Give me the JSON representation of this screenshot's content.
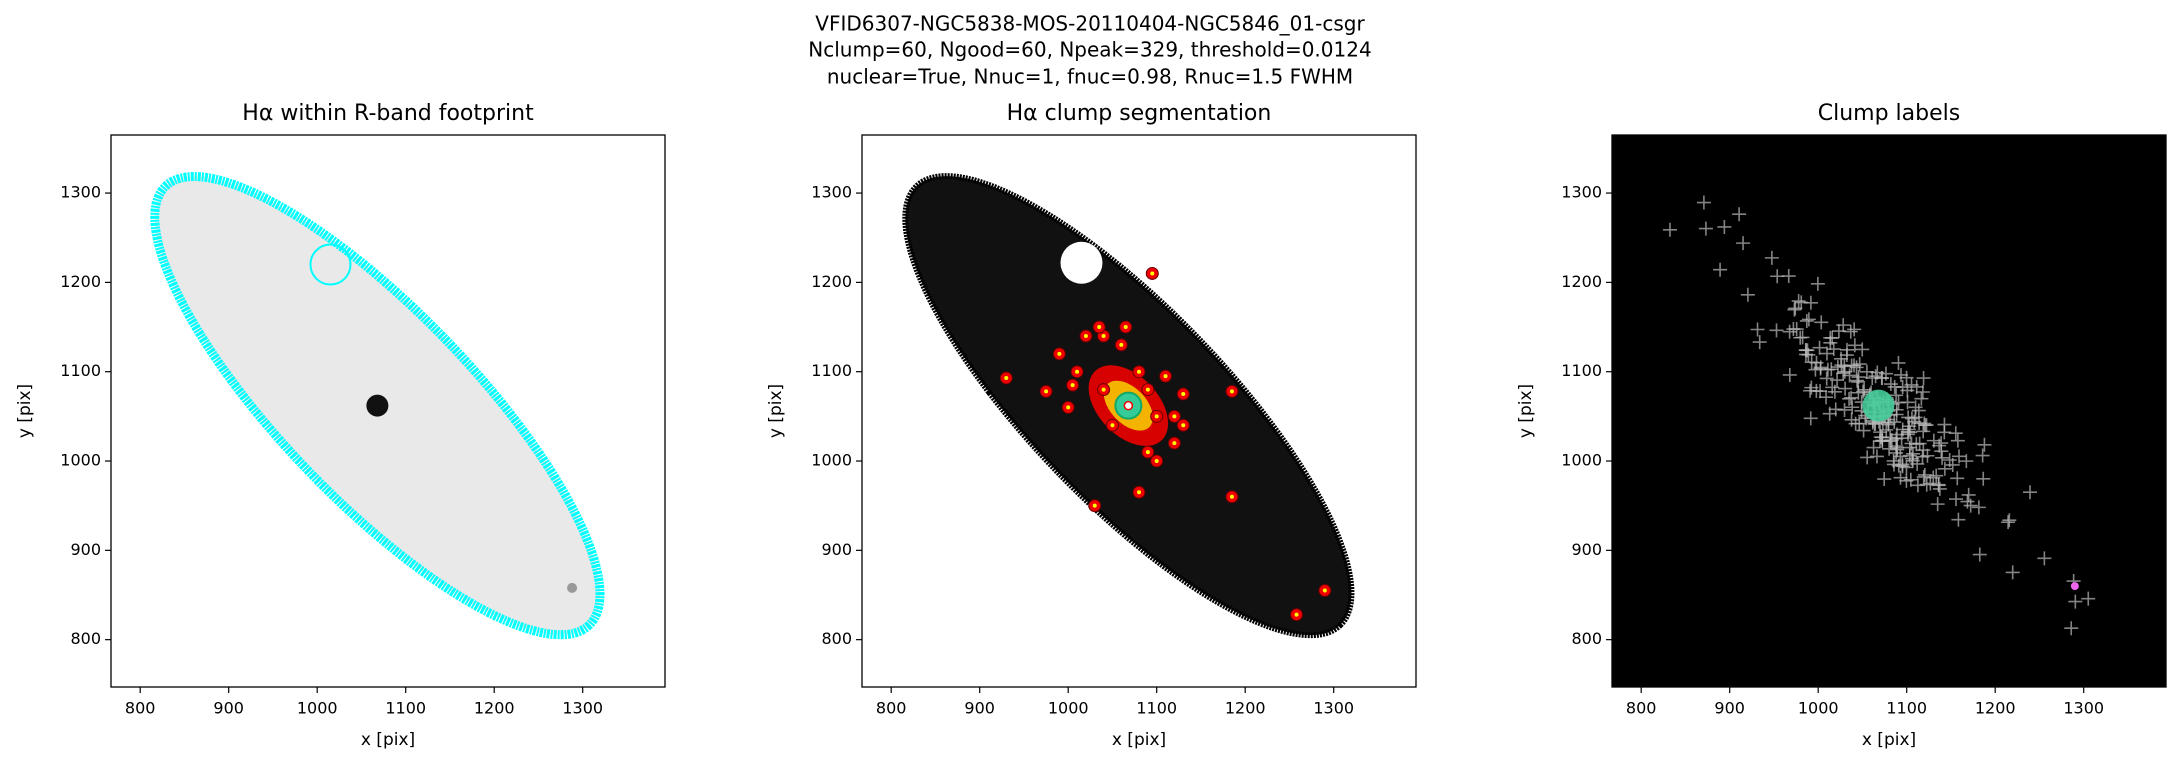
{
  "figure_title": [
    "VFID6307-NGC5838-MOS-20110404-NGC5846_01-csgr",
    "Nclump=60, Ngood=60, Npeak=329, threshold=0.0124",
    "nuclear=True, Nnuc=1, fnuc=0.98, Rnuc=1.5 FWHM"
  ],
  "chart_data": [
    {
      "type": "image",
      "title": "Hα within R-band footprint",
      "xlabel": "x [pix]",
      "ylabel": "y [pix]",
      "xlim": [
        767,
        1393
      ],
      "ylim": [
        747,
        1365
      ],
      "xticks": [
        800,
        900,
        1000,
        1100,
        1200,
        1300
      ],
      "yticks": [
        800,
        900,
        1000,
        1100,
        1200,
        1300
      ]
    },
    {
      "type": "image",
      "title": "Hα clump segmentation",
      "xlabel": "x [pix]",
      "ylabel": "y [pix]",
      "xlim": [
        767,
        1393
      ],
      "ylim": [
        747,
        1365
      ],
      "xticks": [
        800,
        900,
        1000,
        1100,
        1200,
        1300
      ],
      "yticks": [
        800,
        900,
        1000,
        1100,
        1200,
        1300
      ]
    },
    {
      "type": "image",
      "title": "Clump labels",
      "xlabel": "x [pix]",
      "ylabel": "y [pix]",
      "xlim": [
        767,
        1393
      ],
      "ylim": [
        747,
        1365
      ],
      "xticks": [
        800,
        900,
        1000,
        1100,
        1200,
        1300
      ],
      "yticks": [
        800,
        900,
        1000,
        1100,
        1200,
        1300
      ]
    }
  ]
}
